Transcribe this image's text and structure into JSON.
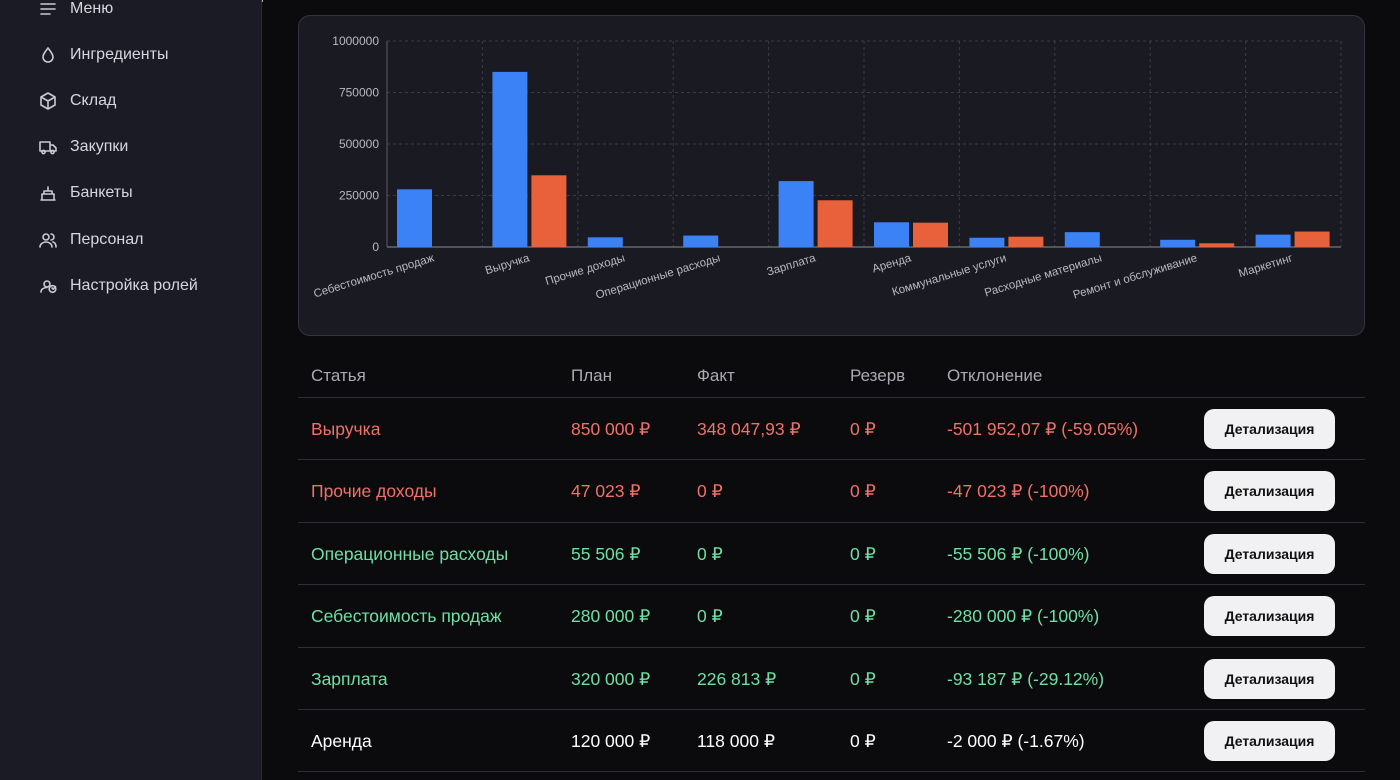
{
  "sidebar": {
    "items": [
      {
        "label": "Меню",
        "icon": "menu-icon"
      },
      {
        "label": "Ингредиенты",
        "icon": "drop-icon"
      },
      {
        "label": "Склад",
        "icon": "box-icon"
      },
      {
        "label": "Закупки",
        "icon": "truck-icon"
      },
      {
        "label": "Банкеты",
        "icon": "cake-icon"
      },
      {
        "label": "Персонал",
        "icon": "users-icon"
      },
      {
        "label": "Настройка ролей",
        "icon": "roles-icon"
      }
    ]
  },
  "colors": {
    "plan": "#3b82f6",
    "fact": "#e8613a",
    "income_text": "#f07167",
    "expense_text": "#6ee0a6",
    "neutral_text": "#ffffff"
  },
  "chart_data": {
    "type": "bar",
    "categories": [
      "Себестоимость продаж",
      "Выручка",
      "Прочие доходы",
      "Операционные расходы",
      "Зарплата",
      "Аренда",
      "Коммунальные услуги",
      "Расходные материалы",
      "Ремонт и обслуживание",
      "Маркетинг"
    ],
    "series": [
      {
        "values": [
          280000,
          850000,
          47023,
          55506,
          320000,
          120000,
          45000,
          72000,
          35000,
          60000
        ]
      },
      {
        "values": [
          0,
          348048,
          0,
          0,
          226813,
          118000,
          50000,
          0,
          18000,
          75000
        ]
      }
    ],
    "yticks": [
      "0",
      "250000",
      "500000",
      "750000",
      "1000000"
    ],
    "ylim": [
      0,
      1000000
    ],
    "grid": true
  },
  "table": {
    "headers": [
      "Статья",
      "План",
      "Факт",
      "Резерв",
      "Отклонение"
    ],
    "button_label": "Детализация",
    "rows": [
      {
        "name": "Выручка",
        "plan": "850 000 ₽",
        "fact": "348 047,93 ₽",
        "reserve": "0 ₽",
        "deviation": "-501 952,07 ₽ (-59.05%)",
        "kind": "income"
      },
      {
        "name": "Прочие доходы",
        "plan": "47 023 ₽",
        "fact": "0 ₽",
        "reserve": "0 ₽",
        "deviation": "-47 023 ₽ (-100%)",
        "kind": "income"
      },
      {
        "name": "Операционные расходы",
        "plan": "55 506 ₽",
        "fact": "0 ₽",
        "reserve": "0 ₽",
        "deviation": "-55 506 ₽ (-100%)",
        "kind": "expense"
      },
      {
        "name": "Себестоимость продаж",
        "plan": "280 000 ₽",
        "fact": "0 ₽",
        "reserve": "0 ₽",
        "deviation": "-280 000 ₽ (-100%)",
        "kind": "expense"
      },
      {
        "name": "Зарплата",
        "plan": "320 000 ₽",
        "fact": "226 813 ₽",
        "reserve": "0 ₽",
        "deviation": "-93 187 ₽ (-29.12%)",
        "kind": "expense"
      },
      {
        "name": "Аренда",
        "plan": "120 000 ₽",
        "fact": "118 000 ₽",
        "reserve": "0 ₽",
        "deviation": "-2 000 ₽ (-1.67%)",
        "kind": "neutral"
      }
    ]
  }
}
